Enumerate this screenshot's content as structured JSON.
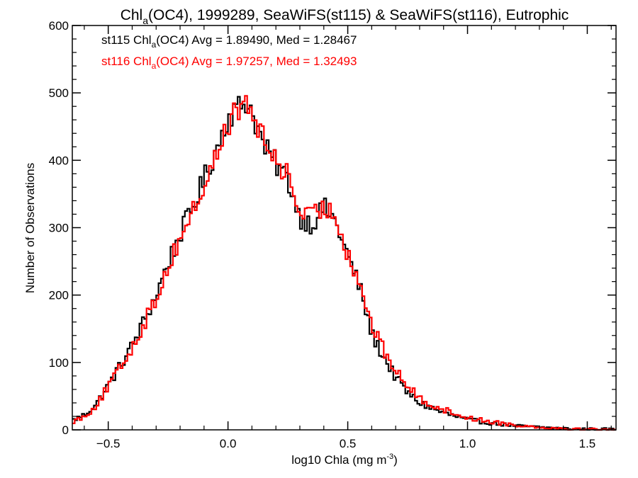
{
  "chart_data": {
    "type": "histogram-step",
    "title_parts": [
      "Chl",
      "a",
      "(OC4), 1999289, SeaWiFS(st115) & SeaWiFS(st116), Eutrophic"
    ],
    "xlabel_parts": [
      "log10 Chla (mg m",
      "-3",
      ")"
    ],
    "ylabel": "Number of Observations",
    "xlim": [
      -0.65,
      1.62
    ],
    "ylim": [
      0,
      600
    ],
    "xticks": [
      -0.5,
      0.0,
      0.5,
      1.0,
      1.5
    ],
    "xtick_labels": [
      "−0.5",
      "0.0",
      "0.5",
      "1.0",
      "1.5"
    ],
    "yticks": [
      0,
      100,
      200,
      300,
      400,
      500,
      600
    ],
    "ytick_labels": [
      "0",
      "100",
      "200",
      "300",
      "400",
      "500",
      "600"
    ],
    "x_minor_step": 0.1,
    "y_minor_step": 20,
    "bin_width": 0.01,
    "x_start": -0.65,
    "grid": false,
    "legend": [
      {
        "parts": [
          "st115 Chl",
          "a",
          "(OC4) Avg = 1.89490, Med = 1.28467"
        ],
        "color": "#000000"
      },
      {
        "parts": [
          "st116 Chl",
          "a",
          "(OC4) Avg = 1.97257, Med = 1.32493"
        ],
        "color": "#ff0000"
      }
    ],
    "series": [
      {
        "color": "#000000",
        "anchors": [
          [
            -0.65,
            14
          ],
          [
            -0.6,
            22
          ],
          [
            -0.55,
            38
          ],
          [
            -0.5,
            66
          ],
          [
            -0.45,
            95
          ],
          [
            -0.4,
            125
          ],
          [
            -0.35,
            162
          ],
          [
            -0.3,
            200
          ],
          [
            -0.25,
            248
          ],
          [
            -0.2,
            290
          ],
          [
            -0.15,
            328
          ],
          [
            -0.1,
            372
          ],
          [
            -0.05,
            415
          ],
          [
            0.0,
            465
          ],
          [
            0.05,
            480
          ],
          [
            0.08,
            488
          ],
          [
            0.1,
            472
          ],
          [
            0.15,
            420
          ],
          [
            0.2,
            395
          ],
          [
            0.25,
            372
          ],
          [
            0.3,
            315
          ],
          [
            0.35,
            305
          ],
          [
            0.4,
            330
          ],
          [
            0.45,
            308
          ],
          [
            0.5,
            258
          ],
          [
            0.55,
            212
          ],
          [
            0.6,
            142
          ],
          [
            0.65,
            108
          ],
          [
            0.7,
            78
          ],
          [
            0.75,
            55
          ],
          [
            0.8,
            40
          ],
          [
            0.9,
            25
          ],
          [
            1.0,
            15
          ],
          [
            1.1,
            10
          ],
          [
            1.2,
            6
          ],
          [
            1.3,
            4
          ],
          [
            1.4,
            2
          ],
          [
            1.5,
            1
          ],
          [
            1.62,
            1
          ]
        ]
      },
      {
        "color": "#ff0000",
        "anchors": [
          [
            -0.65,
            12
          ],
          [
            -0.6,
            20
          ],
          [
            -0.55,
            36
          ],
          [
            -0.5,
            64
          ],
          [
            -0.45,
            92
          ],
          [
            -0.4,
            122
          ],
          [
            -0.35,
            158
          ],
          [
            -0.3,
            195
          ],
          [
            -0.25,
            242
          ],
          [
            -0.2,
            285
          ],
          [
            -0.15,
            322
          ],
          [
            -0.1,
            360
          ],
          [
            -0.05,
            405
          ],
          [
            0.0,
            455
          ],
          [
            0.05,
            478
          ],
          [
            0.08,
            482
          ],
          [
            0.1,
            470
          ],
          [
            0.15,
            428
          ],
          [
            0.2,
            400
          ],
          [
            0.25,
            378
          ],
          [
            0.3,
            322
          ],
          [
            0.35,
            315
          ],
          [
            0.4,
            330
          ],
          [
            0.45,
            318
          ],
          [
            0.5,
            262
          ],
          [
            0.55,
            218
          ],
          [
            0.6,
            155
          ],
          [
            0.65,
            118
          ],
          [
            0.7,
            88
          ],
          [
            0.75,
            65
          ],
          [
            0.8,
            46
          ],
          [
            0.9,
            30
          ],
          [
            1.0,
            18
          ],
          [
            1.1,
            12
          ],
          [
            1.2,
            7
          ],
          [
            1.3,
            4
          ],
          [
            1.4,
            2
          ],
          [
            1.5,
            1
          ],
          [
            1.62,
            1
          ]
        ]
      }
    ]
  }
}
